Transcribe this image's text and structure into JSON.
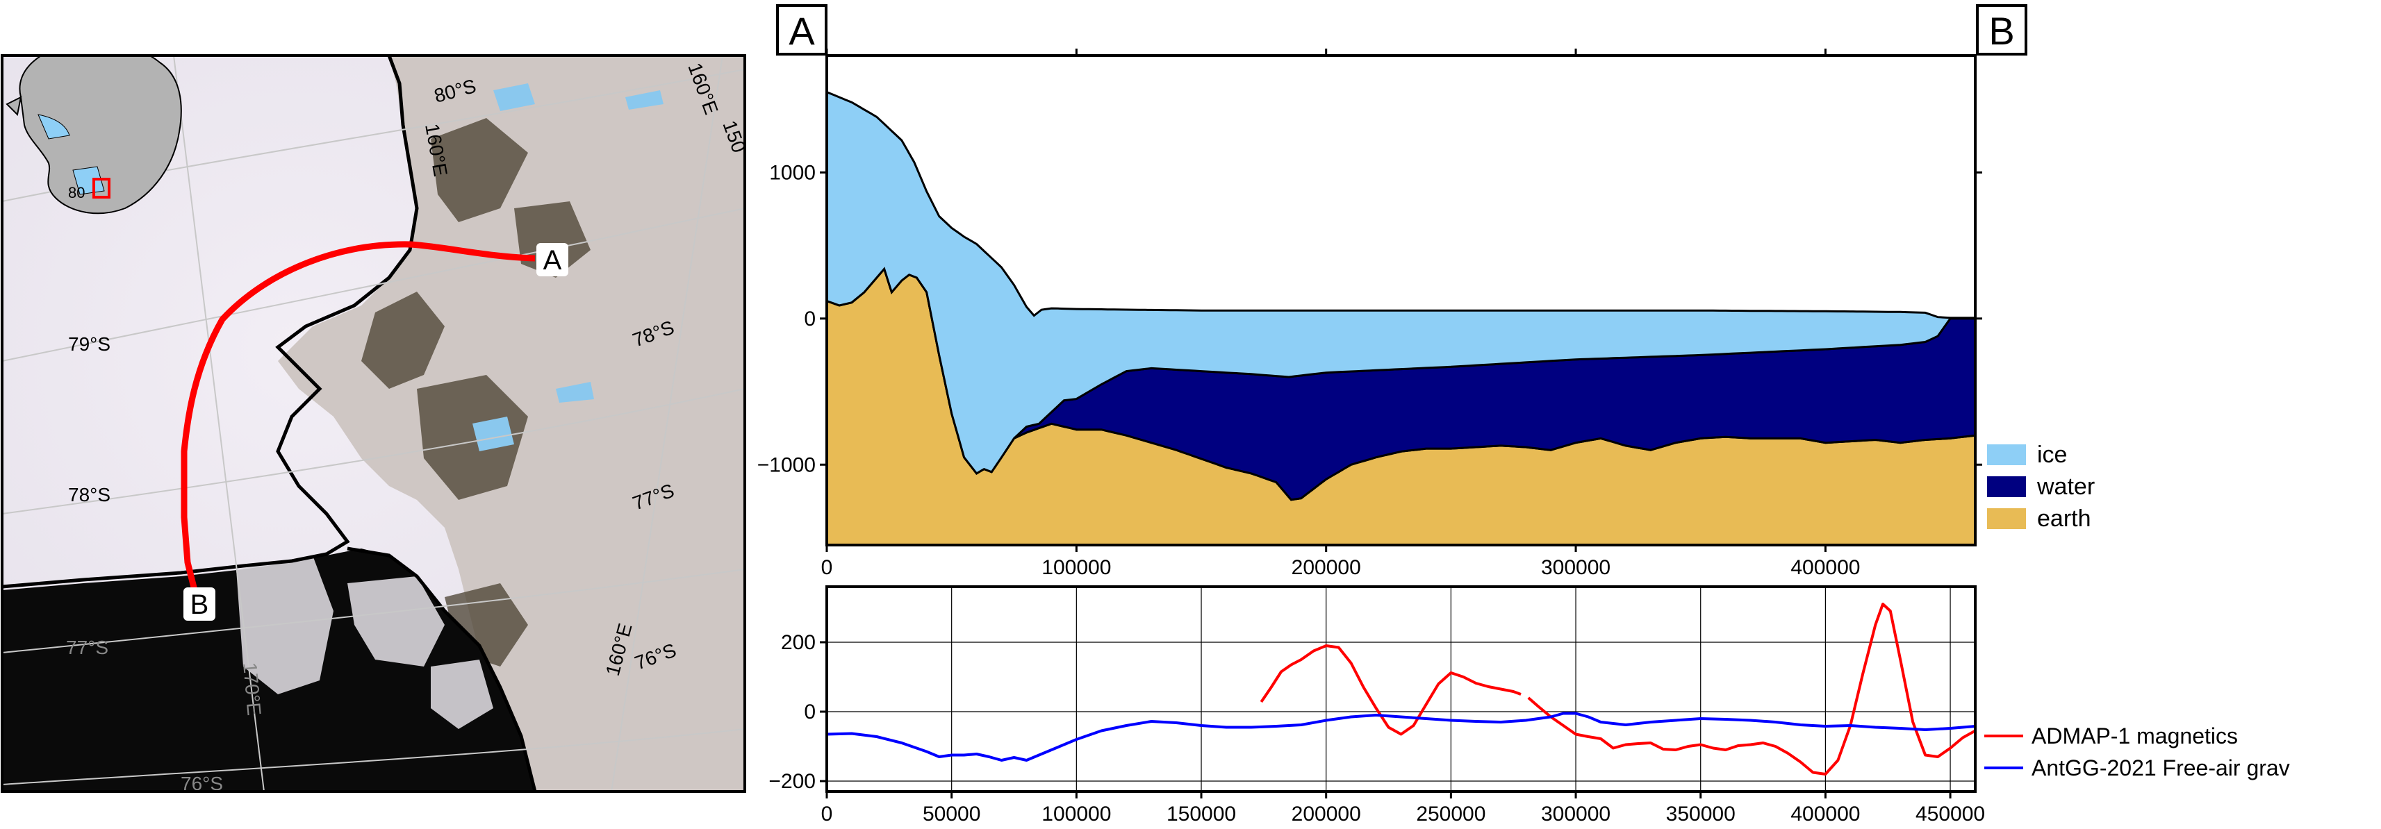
{
  "map": {
    "endpoint_a": "A",
    "endpoint_b": "B",
    "lat_labels": [
      "80°S",
      "79°S",
      "78°S",
      "78°S",
      "77°S",
      "77°S",
      "76°S",
      "76°S"
    ],
    "lon_labels": [
      "160°E",
      "150",
      "160°E",
      "170°E",
      "160°E"
    ],
    "inset_label": "80",
    "colors": {
      "shelf": "#ece8f0",
      "ocean": "#0a0a0a",
      "rock": "#4a4030",
      "profile_line": "#ff0000",
      "coast": "#000000",
      "melt": "#8ac8ee"
    }
  },
  "profile_labels": {
    "start": "A",
    "end": "B"
  },
  "chart_data": [
    {
      "type": "area",
      "role": "cross-section",
      "xlim": [
        0,
        460000
      ],
      "ylim": [
        -1550,
        1800
      ],
      "x_ticks": [
        0,
        100000,
        200000,
        300000,
        400000
      ],
      "y_ticks": [
        1000,
        0,
        -1000
      ],
      "x_tick_labels": [
        "0",
        "100000",
        "200000",
        "300000",
        "400000"
      ],
      "y_tick_labels": [
        "1000",
        "0",
        "−1000"
      ],
      "legend": [
        "ice",
        "water",
        "earth"
      ],
      "legend_position": "right",
      "colors": {
        "ice": "#8ecff6",
        "water": "#000080",
        "earth": "#e8bb55"
      },
      "surface": {
        "x": [
          0,
          10000,
          20000,
          25000,
          30000,
          35000,
          40000,
          45000,
          50000,
          55000,
          60000,
          65000,
          70000,
          75000,
          80000,
          83000,
          86000,
          90000,
          100000,
          150000,
          200000,
          250000,
          300000,
          350000,
          400000,
          430000,
          440000,
          445000,
          450000,
          460000
        ],
        "y": [
          1550,
          1480,
          1380,
          1300,
          1220,
          1070,
          870,
          700,
          620,
          560,
          510,
          430,
          350,
          230,
          80,
          20,
          60,
          70,
          65,
          55,
          55,
          55,
          55,
          55,
          50,
          45,
          40,
          10,
          5,
          5
        ]
      },
      "ice_base": {
        "x": [
          0,
          5000,
          10000,
          15000,
          20000,
          23000,
          26000,
          30000,
          33000,
          36000,
          40000,
          45000,
          50000,
          55000,
          60000,
          63000,
          66000,
          70000,
          75000,
          80000,
          85000,
          90000,
          95000,
          100000,
          110000,
          120000,
          130000,
          150000,
          170000,
          185000,
          200000,
          250000,
          300000,
          350000,
          400000,
          430000,
          440000,
          445000,
          450000
        ],
        "y": [
          120,
          90,
          110,
          180,
          280,
          340,
          180,
          260,
          300,
          280,
          180,
          -250,
          -650,
          -950,
          -1060,
          -1030,
          -1050,
          -950,
          -820,
          -740,
          -720,
          -640,
          -560,
          -550,
          -450,
          -360,
          -340,
          -360,
          -380,
          -400,
          -370,
          -330,
          -280,
          -250,
          -210,
          -180,
          -160,
          -120,
          0
        ]
      },
      "bed": {
        "x": [
          0,
          5000,
          10000,
          15000,
          20000,
          23000,
          26000,
          30000,
          33000,
          36000,
          40000,
          45000,
          50000,
          55000,
          60000,
          63000,
          66000,
          70000,
          75000,
          80000,
          85000,
          90000,
          95000,
          100000,
          110000,
          120000,
          130000,
          140000,
          150000,
          160000,
          170000,
          180000,
          186000,
          190000,
          200000,
          210000,
          220000,
          230000,
          240000,
          250000,
          260000,
          270000,
          280000,
          290000,
          300000,
          310000,
          320000,
          330000,
          340000,
          350000,
          360000,
          370000,
          380000,
          390000,
          400000,
          410000,
          420000,
          430000,
          440000,
          450000,
          460000
        ],
        "y": [
          120,
          90,
          110,
          180,
          280,
          340,
          180,
          260,
          300,
          280,
          180,
          -250,
          -650,
          -950,
          -1060,
          -1030,
          -1050,
          -950,
          -820,
          -780,
          -750,
          -720,
          -740,
          -760,
          -760,
          -800,
          -850,
          -900,
          -960,
          -1020,
          -1060,
          -1120,
          -1240,
          -1230,
          -1100,
          -1000,
          -950,
          -910,
          -890,
          -890,
          -880,
          -870,
          -880,
          -900,
          -850,
          -820,
          -870,
          -900,
          -850,
          -820,
          -810,
          -820,
          -820,
          -820,
          -850,
          -840,
          -830,
          -850,
          -830,
          -820,
          -800
        ]
      }
    },
    {
      "type": "line",
      "role": "anomaly-profiles",
      "xlim": [
        0,
        460000
      ],
      "ylim": [
        -230,
        360
      ],
      "x_ticks": [
        0,
        50000,
        100000,
        150000,
        200000,
        250000,
        300000,
        350000,
        400000,
        450000
      ],
      "y_ticks": [
        200,
        0,
        -200
      ],
      "x_tick_labels": [
        "0",
        "50000",
        "100000",
        "150000",
        "200000",
        "250000",
        "300000",
        "350000",
        "400000",
        "450000"
      ],
      "y_tick_labels": [
        "200",
        "0",
        "−200"
      ],
      "grid": true,
      "legend_position": "right",
      "series": [
        {
          "name": "ADMAP-1 magnetics",
          "color": "#ff0000",
          "segments": [
            {
              "x": [
                174000,
                178000,
                182000,
                186000,
                190000,
                195000,
                200000,
                205000,
                210000,
                215000,
                220000,
                225000,
                230000,
                235000,
                240000,
                245000,
                250000,
                255000,
                260000,
                265000,
                270000,
                275000,
                278000
              ],
              "y": [
                28,
                70,
                115,
                135,
                150,
                175,
                190,
                185,
                140,
                70,
                10,
                -45,
                -65,
                -40,
                20,
                80,
                112,
                100,
                82,
                72,
                65,
                58,
                50
              ]
            },
            {
              "x": [
                281000,
                285000,
                290000,
                295000,
                300000,
                305000,
                310000,
                315000,
                320000,
                325000,
                330000,
                335000,
                340000,
                345000,
                350000,
                355000,
                360000,
                365000,
                370000,
                375000,
                380000,
                385000,
                390000,
                395000,
                400000,
                405000,
                410000,
                415000,
                420000,
                423000,
                426000,
                430000,
                435000,
                440000,
                445000,
                450000,
                455000,
                460000
              ],
              "y": [
                40,
                15,
                -15,
                -40,
                -65,
                -72,
                -78,
                -105,
                -95,
                -92,
                -90,
                -108,
                -110,
                -100,
                -95,
                -105,
                -110,
                -98,
                -95,
                -90,
                -100,
                -120,
                -145,
                -175,
                -180,
                -140,
                -40,
                110,
                250,
                310,
                290,
                150,
                -30,
                -125,
                -130,
                -105,
                -75,
                -55
              ]
            }
          ]
        },
        {
          "name": "AntGG-2021 Free-air grav",
          "color": "#0000ff",
          "segments": [
            {
              "x": [
                0,
                10000,
                20000,
                30000,
                40000,
                45000,
                50000,
                55000,
                60000,
                65000,
                70000,
                75000,
                80000,
                85000,
                90000,
                100000,
                110000,
                120000,
                130000,
                140000,
                150000,
                160000,
                170000,
                180000,
                190000,
                200000,
                210000,
                220000,
                230000,
                240000,
                250000,
                260000,
                270000,
                280000,
                290000,
                295000,
                300000,
                305000,
                310000,
                320000,
                330000,
                340000,
                350000,
                360000,
                370000,
                380000,
                390000,
                400000,
                410000,
                420000,
                430000,
                440000,
                450000,
                460000
              ],
              "y": [
                -65,
                -63,
                -72,
                -90,
                -115,
                -130,
                -125,
                -125,
                -122,
                -130,
                -140,
                -132,
                -140,
                -125,
                -110,
                -80,
                -55,
                -40,
                -28,
                -32,
                -40,
                -45,
                -45,
                -42,
                -38,
                -25,
                -15,
                -10,
                -15,
                -20,
                -25,
                -28,
                -30,
                -25,
                -15,
                -5,
                -5,
                -15,
                -30,
                -38,
                -30,
                -25,
                -20,
                -22,
                -25,
                -30,
                -38,
                -42,
                -40,
                -45,
                -48,
                -52,
                -48,
                -42
              ]
            }
          ]
        }
      ]
    }
  ]
}
